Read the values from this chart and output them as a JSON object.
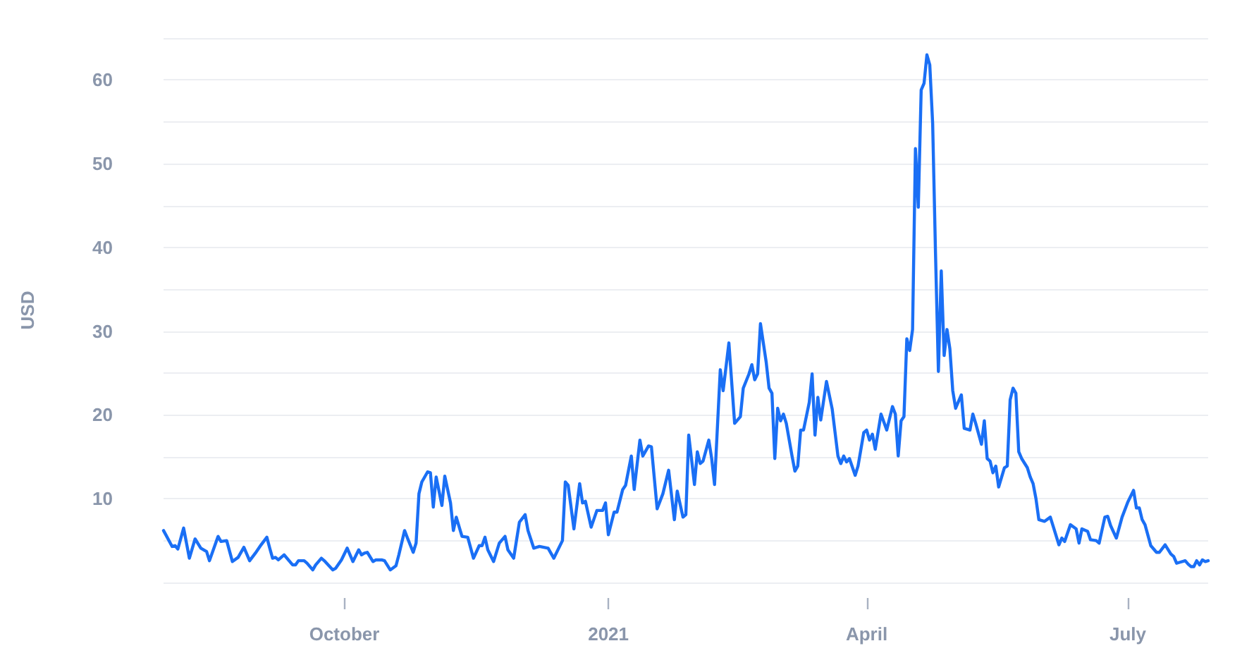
{
  "chart_data": {
    "type": "line",
    "ylabel": "USD",
    "xlim": [
      "2020-07-30",
      "2021-07-29"
    ],
    "xticks": [
      {
        "value": "2020-10-01",
        "label": "October"
      },
      {
        "value": "2021-01-01",
        "label": "2021"
      },
      {
        "value": "2021-04-01",
        "label": "April"
      },
      {
        "value": "2021-07-01",
        "label": "July"
      }
    ],
    "ylim": [
      0,
      65
    ],
    "yticks": [
      {
        "value": 0,
        "label": null
      },
      {
        "value": 5,
        "label": null
      },
      10,
      {
        "value": 15,
        "label": null
      },
      20,
      {
        "value": 25,
        "label": null
      },
      30,
      {
        "value": 35,
        "label": null
      },
      40,
      {
        "value": 45,
        "label": null
      },
      50,
      {
        "value": 55,
        "label": null
      },
      60,
      {
        "value": 65,
        "label": null
      }
    ],
    "grid": "y",
    "color": "#1a6ff5",
    "x": [
      "2020-07-30",
      "2020-08-02",
      "2020-08-03",
      "2020-08-04",
      "2020-08-06",
      "2020-08-08",
      "2020-08-10",
      "2020-08-12",
      "2020-08-14",
      "2020-08-15",
      "2020-08-18",
      "2020-08-19",
      "2020-08-21",
      "2020-08-23",
      "2020-08-25",
      "2020-08-27",
      "2020-08-28",
      "2020-08-29",
      "2020-08-31",
      "2020-09-02",
      "2020-09-04",
      "2020-09-05",
      "2020-09-06",
      "2020-09-07",
      "2020-09-08",
      "2020-09-10",
      "2020-09-13",
      "2020-09-14",
      "2020-09-15",
      "2020-09-17",
      "2020-09-18",
      "2020-09-20",
      "2020-09-21",
      "2020-09-23",
      "2020-09-24",
      "2020-09-27",
      "2020-09-28",
      "2020-09-30",
      "2020-10-02",
      "2020-10-04",
      "2020-10-06",
      "2020-10-07",
      "2020-10-08",
      "2020-10-09",
      "2020-10-11",
      "2020-10-12",
      "2020-10-14",
      "2020-10-15",
      "2020-10-17",
      "2020-10-19",
      "2020-10-20",
      "2020-10-22",
      "2020-10-23",
      "2020-10-25",
      "2020-10-26",
      "2020-10-27",
      "2020-10-28",
      "2020-10-30",
      "2020-10-31",
      "2020-11-01",
      "2020-11-02",
      "2020-11-04",
      "2020-11-05",
      "2020-11-07",
      "2020-11-08",
      "2020-11-09",
      "2020-11-11",
      "2020-11-13",
      "2020-11-15",
      "2020-11-17",
      "2020-11-18",
      "2020-11-19",
      "2020-11-20",
      "2020-11-22",
      "2020-11-24",
      "2020-11-26",
      "2020-11-27",
      "2020-11-29",
      "2020-12-01",
      "2020-12-03",
      "2020-12-04",
      "2020-12-06",
      "2020-12-08",
      "2020-12-11",
      "2020-12-13",
      "2020-12-16",
      "2020-12-17",
      "2020-12-18",
      "2020-12-20",
      "2020-12-22",
      "2020-12-23",
      "2020-12-24",
      "2020-12-26",
      "2020-12-28",
      "2020-12-30",
      "2020-12-31",
      "2021-01-01",
      "2021-01-03",
      "2021-01-04",
      "2021-01-06",
      "2021-01-07",
      "2021-01-09",
      "2021-01-10",
      "2021-01-12",
      "2021-01-13",
      "2021-01-15",
      "2021-01-16",
      "2021-01-18",
      "2021-01-20",
      "2021-01-22",
      "2021-01-24",
      "2021-01-25",
      "2021-01-27",
      "2021-01-28",
      "2021-01-29",
      "2021-01-31",
      "2021-02-01",
      "2021-02-02",
      "2021-02-03",
      "2021-02-05",
      "2021-02-06",
      "2021-02-07",
      "2021-02-09",
      "2021-02-10",
      "2021-02-12",
      "2021-02-14",
      "2021-02-16",
      "2021-02-17",
      "2021-02-19",
      "2021-02-20",
      "2021-02-21",
      "2021-02-22",
      "2021-02-23",
      "2021-02-25",
      "2021-02-26",
      "2021-02-27",
      "2021-02-28",
      "2021-03-01",
      "2021-03-02",
      "2021-03-03",
      "2021-03-04",
      "2021-03-06",
      "2021-03-07",
      "2021-03-08",
      "2021-03-09",
      "2021-03-10",
      "2021-03-12",
      "2021-03-13",
      "2021-03-14",
      "2021-03-15",
      "2021-03-16",
      "2021-03-18",
      "2021-03-20",
      "2021-03-21",
      "2021-03-22",
      "2021-03-23",
      "2021-03-24",
      "2021-03-25",
      "2021-03-26",
      "2021-03-28",
      "2021-03-29",
      "2021-03-31",
      "2021-04-01",
      "2021-04-02",
      "2021-04-03",
      "2021-04-04",
      "2021-04-06",
      "2021-04-08",
      "2021-04-10",
      "2021-04-11",
      "2021-04-12",
      "2021-04-13",
      "2021-04-14",
      "2021-04-15",
      "2021-04-16",
      "2021-04-17",
      "2021-04-18",
      "2021-04-19",
      "2021-04-20",
      "2021-04-21",
      "2021-04-22",
      "2021-04-23",
      "2021-04-24",
      "2021-04-25",
      "2021-04-26",
      "2021-04-27",
      "2021-04-28",
      "2021-04-29",
      "2021-04-30",
      "2021-05-01",
      "2021-05-02",
      "2021-05-04",
      "2021-05-05",
      "2021-05-07",
      "2021-05-08",
      "2021-05-09",
      "2021-05-11",
      "2021-05-12",
      "2021-05-13",
      "2021-05-14",
      "2021-05-15",
      "2021-05-16",
      "2021-05-17",
      "2021-05-19",
      "2021-05-20",
      "2021-05-21",
      "2021-05-22",
      "2021-05-23",
      "2021-05-24",
      "2021-05-25",
      "2021-05-27",
      "2021-05-28",
      "2021-05-29",
      "2021-05-30",
      "2021-05-31",
      "2021-06-02",
      "2021-06-04",
      "2021-06-05",
      "2021-06-07",
      "2021-06-08",
      "2021-06-09",
      "2021-06-11",
      "2021-06-13",
      "2021-06-14",
      "2021-06-15",
      "2021-06-17",
      "2021-06-18",
      "2021-06-20",
      "2021-06-21",
      "2021-06-23",
      "2021-06-24",
      "2021-06-25",
      "2021-06-27",
      "2021-06-29",
      "2021-07-01",
      "2021-07-03",
      "2021-07-04",
      "2021-07-05",
      "2021-07-06",
      "2021-07-07",
      "2021-07-09",
      "2021-07-11",
      "2021-07-12",
      "2021-07-14",
      "2021-07-16",
      "2021-07-17",
      "2021-07-18",
      "2021-07-19",
      "2021-07-21",
      "2021-07-22",
      "2021-07-23",
      "2021-07-24",
      "2021-07-25",
      "2021-07-26",
      "2021-07-27",
      "2021-07-28",
      "2021-07-29"
    ],
    "values": [
      6.2,
      4.3,
      4.4,
      4.0,
      6.5,
      2.9,
      5.2,
      4.1,
      3.7,
      2.6,
      5.5,
      4.9,
      5.0,
      2.5,
      3.0,
      4.2,
      3.4,
      2.6,
      3.5,
      4.5,
      5.4,
      4.1,
      2.9,
      3.0,
      2.7,
      3.3,
      2.1,
      2.1,
      2.6,
      2.6,
      2.3,
      1.5,
      2.1,
      2.9,
      2.6,
      1.5,
      1.7,
      2.7,
      4.1,
      2.5,
      3.9,
      3.3,
      3.5,
      3.6,
      2.5,
      2.7,
      2.7,
      2.6,
      1.5,
      2.0,
      3.3,
      6.2,
      5.3,
      3.6,
      4.7,
      10.6,
      12.0,
      13.2,
      13.1,
      9.0,
      12.6,
      9.2,
      12.7,
      9.5,
      6.2,
      7.8,
      5.5,
      5.4,
      2.9,
      4.4,
      4.4,
      5.4,
      3.9,
      2.5,
      4.7,
      5.5,
      3.9,
      2.9,
      7.2,
      8.1,
      6.2,
      4.1,
      4.3,
      4.1,
      2.9,
      5.0,
      12.0,
      11.6,
      6.4,
      11.8,
      9.5,
      9.7,
      6.6,
      8.6,
      8.6,
      9.5,
      5.7,
      8.4,
      8.4,
      11.1,
      11.6,
      15.1,
      11.1,
      17.0,
      15.1,
      16.3,
      16.2,
      8.8,
      10.6,
      13.4,
      7.5,
      10.9,
      7.8,
      8.1,
      17.6,
      11.7,
      15.6,
      14.2,
      14.5,
      17.0,
      14.8,
      11.7,
      25.4,
      22.9,
      28.6,
      19.0,
      19.8,
      23.2,
      24.9,
      26.0,
      24.2,
      24.9,
      30.9,
      26.3,
      23.2,
      22.6,
      14.8,
      20.8,
      19.3,
      20.1,
      19.0,
      15.1,
      13.3,
      13.9,
      18.2,
      18.2,
      21.5,
      24.9,
      17.6,
      22.1,
      19.4,
      24.0,
      20.7,
      17.9,
      15.1,
      14.2,
      15.1,
      14.4,
      14.8,
      12.8,
      13.9,
      17.9,
      18.2,
      17.0,
      17.7,
      15.9,
      20.1,
      18.2,
      21.0,
      20.1,
      15.1,
      19.3,
      19.8,
      29.1,
      27.7,
      30.2,
      51.8,
      44.8,
      58.8,
      59.6,
      63.0,
      61.8,
      54.8,
      39.2,
      25.2,
      37.2,
      27.1,
      30.2,
      27.9,
      22.9,
      20.8,
      22.4,
      18.4,
      18.2,
      20.1,
      19.0,
      16.5,
      19.3,
      14.8,
      14.5,
      13.1,
      13.9,
      11.4,
      13.7,
      13.9,
      21.8,
      23.2,
      22.6,
      15.6,
      14.8,
      13.7,
      12.6,
      11.8,
      10.0,
      7.5,
      7.3,
      7.8,
      6.7,
      4.5,
      5.3,
      4.9,
      6.9,
      6.4,
      4.7,
      6.4,
      6.1,
      5.1,
      5.0,
      4.7,
      7.8,
      7.9,
      6.8,
      5.3,
      7.8,
      9.6,
      11.0,
      8.9,
      8.9,
      7.5,
      6.9,
      4.4,
      3.6,
      3.6,
      4.5,
      3.4,
      3.1,
      2.3,
      2.4,
      2.6,
      2.2,
      1.9,
      1.9,
      2.6,
      2.1,
      2.7,
      2.5,
      2.6
    ]
  }
}
